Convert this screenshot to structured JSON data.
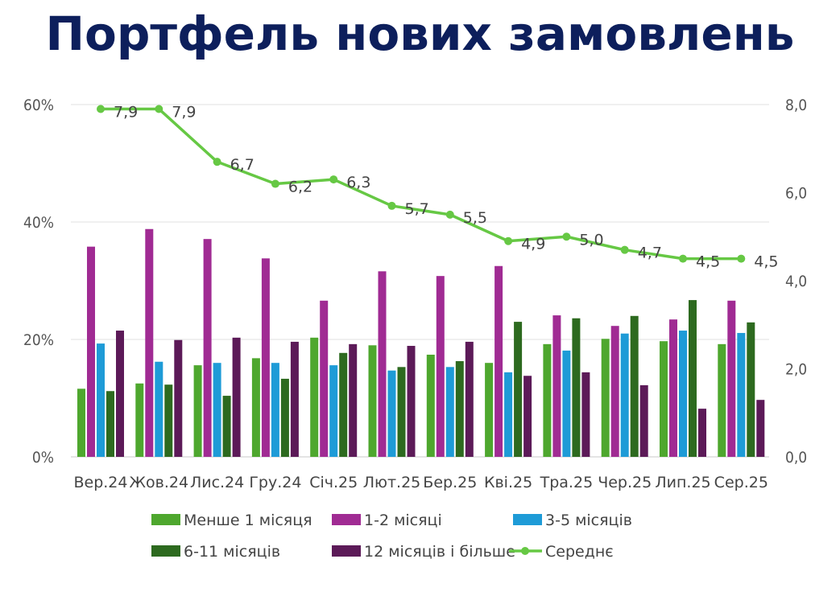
{
  "chart_data": {
    "type": "bar",
    "title": "Портфель нових замовлень",
    "categories": [
      "Вер.24",
      "Жов.24",
      "Лис.24",
      "Гру.24",
      "Січ.25",
      "Лют.25",
      "Бер.25",
      "Кві.25",
      "Тра.25",
      "Чер.25",
      "Лип.25",
      "Сер.25"
    ],
    "ylim": [
      0,
      60
    ],
    "y_ticks": [
      "0%",
      "20%",
      "40%",
      "60%"
    ],
    "y2lim": [
      0,
      8
    ],
    "y2_ticks": [
      "0,0",
      "2,0",
      "4,0",
      "6,0",
      "8,0"
    ],
    "grid": true,
    "legend": "bottom",
    "series": [
      {
        "name": "Менше 1 місяця",
        "type": "bar",
        "axis": "left",
        "color": "#4ea72e",
        "values": [
          11.6,
          12.5,
          15.6,
          16.8,
          20.3,
          19.0,
          17.4,
          16.0,
          19.2,
          20.1,
          19.7,
          19.2
        ]
      },
      {
        "name": "1-2 місяці",
        "type": "bar",
        "axis": "left",
        "color": "#a02b93",
        "values": [
          35.8,
          38.8,
          37.1,
          33.8,
          26.6,
          31.6,
          30.8,
          32.5,
          24.1,
          22.3,
          23.4,
          26.6
        ]
      },
      {
        "name": "3-5 місяців",
        "type": "bar",
        "axis": "left",
        "color": "#1e9bd7",
        "values": [
          19.3,
          16.2,
          16.0,
          16.0,
          15.6,
          14.7,
          15.3,
          14.4,
          18.1,
          21.0,
          21.5,
          21.1
        ]
      },
      {
        "name": "6-11 місяців",
        "type": "bar",
        "axis": "left",
        "color": "#2d6a1f",
        "values": [
          11.2,
          12.3,
          10.4,
          13.3,
          17.7,
          15.3,
          16.3,
          23.0,
          23.6,
          24.0,
          26.7,
          22.9
        ]
      },
      {
        "name": "12 місяців і більше",
        "type": "bar",
        "axis": "left",
        "color": "#5c1a58",
        "values": [
          21.5,
          19.9,
          20.3,
          19.6,
          19.2,
          18.9,
          19.6,
          13.8,
          14.4,
          12.2,
          8.2,
          9.7
        ]
      },
      {
        "name": "Середнє",
        "type": "line",
        "axis": "right",
        "color": "#66c844",
        "values": [
          7.9,
          7.9,
          6.7,
          6.2,
          6.3,
          5.7,
          5.5,
          4.9,
          5.0,
          4.7,
          4.5,
          4.5
        ],
        "labels": [
          "7,9",
          "7,9",
          "6,7",
          "6,2",
          "6,3",
          "5,7",
          "5,5",
          "4,9",
          "5,0",
          "4,7",
          "4,5",
          "4,5"
        ]
      }
    ]
  }
}
